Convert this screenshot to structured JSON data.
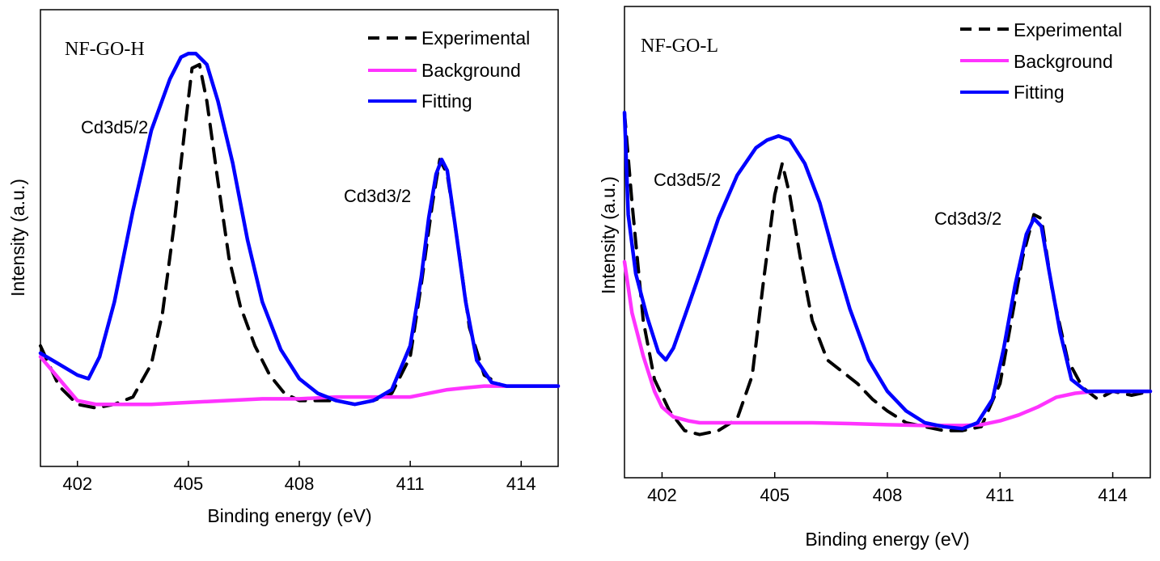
{
  "chart_data": [
    {
      "type": "line",
      "title": "",
      "sample_label": "NF-GO-H",
      "xlabel": "Binding energy (eV)",
      "ylabel": "Intensity (a.u.)",
      "xlim": [
        401,
        415
      ],
      "ylim": [
        0,
        1.25
      ],
      "xticks": [
        "402",
        "405",
        "408",
        "411",
        "414"
      ],
      "xtick_values": [
        402,
        405,
        408,
        411,
        414
      ],
      "y_ticks_shown": false,
      "grid": false,
      "legend_position": "top-right",
      "legend": [
        {
          "name": "Experimental",
          "style": "dashed",
          "color": "#000000"
        },
        {
          "name": "Background",
          "style": "solid",
          "color": "#ff33ff"
        },
        {
          "name": "Fitting",
          "style": "solid",
          "color": "#0000ff"
        }
      ],
      "annotations": [
        {
          "text": "Cd3d5/2",
          "x": 403.0,
          "y": 0.9
        },
        {
          "text": "Cd3d3/2",
          "x": 411.1,
          "y": 0.71
        }
      ],
      "series": [
        {
          "name": "Experimental",
          "color": "#000000",
          "style": "dashed",
          "x": [
            401.0,
            401.5,
            402.0,
            402.5,
            403.0,
            403.5,
            404.0,
            404.3,
            404.6,
            404.9,
            405.1,
            405.3,
            405.5,
            405.8,
            406.1,
            406.4,
            406.8,
            407.2,
            407.6,
            408.0,
            408.5,
            409.0,
            409.5,
            410.0,
            410.5,
            411.0,
            411.3,
            411.6,
            411.8,
            412.0,
            412.3,
            412.6,
            413.0,
            413.5,
            414.0,
            414.5,
            415.0
          ],
          "y": [
            0.33,
            0.22,
            0.17,
            0.16,
            0.17,
            0.19,
            0.28,
            0.42,
            0.65,
            0.92,
            1.09,
            1.1,
            1.0,
            0.78,
            0.57,
            0.44,
            0.33,
            0.25,
            0.2,
            0.18,
            0.18,
            0.18,
            0.17,
            0.18,
            0.2,
            0.3,
            0.5,
            0.72,
            0.84,
            0.8,
            0.6,
            0.38,
            0.25,
            0.22,
            0.22,
            0.22,
            0.22
          ]
        },
        {
          "name": "Background",
          "color": "#ff33ff",
          "style": "solid",
          "x": [
            401.0,
            401.5,
            402.0,
            402.5,
            403.0,
            404.0,
            405.0,
            406.0,
            407.0,
            408.0,
            409.0,
            410.0,
            411.0,
            411.5,
            412.0,
            412.5,
            413.0,
            413.5,
            414.0,
            415.0
          ],
          "y": [
            0.3,
            0.24,
            0.18,
            0.17,
            0.17,
            0.17,
            0.175,
            0.18,
            0.185,
            0.185,
            0.19,
            0.19,
            0.19,
            0.2,
            0.21,
            0.215,
            0.22,
            0.22,
            0.22,
            0.22
          ]
        },
        {
          "name": "Fitting",
          "color": "#0000ff",
          "style": "solid",
          "x": [
            401.0,
            401.5,
            402.0,
            402.3,
            402.6,
            403.0,
            403.5,
            404.0,
            404.5,
            404.8,
            405.0,
            405.2,
            405.5,
            405.8,
            406.2,
            406.6,
            407.0,
            407.5,
            408.0,
            408.5,
            409.0,
            409.5,
            410.0,
            410.5,
            411.0,
            411.3,
            411.5,
            411.7,
            411.85,
            412.0,
            412.2,
            412.5,
            412.8,
            413.2,
            413.6,
            414.0,
            414.5,
            415.0
          ],
          "y": [
            0.31,
            0.28,
            0.25,
            0.24,
            0.3,
            0.45,
            0.7,
            0.92,
            1.06,
            1.12,
            1.13,
            1.13,
            1.1,
            1.0,
            0.83,
            0.62,
            0.45,
            0.32,
            0.24,
            0.2,
            0.18,
            0.17,
            0.18,
            0.21,
            0.33,
            0.52,
            0.68,
            0.8,
            0.84,
            0.81,
            0.67,
            0.45,
            0.29,
            0.23,
            0.22,
            0.22,
            0.22,
            0.22
          ]
        }
      ]
    },
    {
      "type": "line",
      "title": "",
      "sample_label": "NF-GO-L",
      "xlabel": "Binding energy (eV)",
      "ylabel": "Intensity (a.u.)",
      "xlim": [
        401,
        415
      ],
      "ylim": [
        0,
        1.2
      ],
      "xticks": [
        "402",
        "405",
        "408",
        "411",
        "414"
      ],
      "xtick_values": [
        402,
        405,
        408,
        411,
        414
      ],
      "y_ticks_shown": false,
      "grid": false,
      "legend_position": "top-right",
      "legend": [
        {
          "name": "Experimental",
          "style": "dashed",
          "color": "#000000"
        },
        {
          "name": "Background",
          "style": "solid",
          "color": "#ff33ff"
        },
        {
          "name": "Fitting",
          "style": "solid",
          "color": "#0000ff"
        }
      ],
      "annotations": [
        {
          "text": "Cd3d5/2",
          "x": 402.8,
          "y": 0.77
        },
        {
          "text": "Cd3d3/2",
          "x": 410.3,
          "y": 0.66
        }
      ],
      "series": [
        {
          "name": "Experimental",
          "color": "#000000",
          "style": "dashed",
          "x": [
            401.0,
            401.2,
            401.5,
            401.8,
            402.2,
            402.6,
            403.0,
            403.5,
            404.0,
            404.4,
            404.7,
            405.0,
            405.2,
            405.4,
            405.7,
            406.0,
            406.4,
            406.8,
            407.2,
            407.6,
            408.0,
            408.5,
            409.0,
            409.5,
            410.0,
            410.5,
            411.0,
            411.3,
            411.6,
            411.9,
            412.1,
            412.4,
            412.8,
            413.2,
            413.6,
            414.0,
            414.5,
            415.0
          ],
          "y": [
            0.93,
            0.7,
            0.4,
            0.25,
            0.17,
            0.12,
            0.11,
            0.12,
            0.15,
            0.26,
            0.5,
            0.72,
            0.8,
            0.72,
            0.55,
            0.4,
            0.3,
            0.27,
            0.24,
            0.2,
            0.17,
            0.14,
            0.13,
            0.12,
            0.12,
            0.13,
            0.24,
            0.4,
            0.56,
            0.67,
            0.66,
            0.47,
            0.3,
            0.23,
            0.2,
            0.22,
            0.21,
            0.22
          ]
        },
        {
          "name": "Background",
          "color": "#ff33ff",
          "style": "solid",
          "x": [
            401.0,
            401.2,
            401.5,
            401.8,
            402.0,
            402.3,
            402.7,
            403.0,
            404.0,
            405.0,
            406.0,
            407.0,
            408.0,
            409.0,
            410.0,
            410.5,
            411.0,
            411.5,
            412.0,
            412.5,
            413.0,
            413.5,
            414.0,
            414.5,
            415.0
          ],
          "y": [
            0.55,
            0.42,
            0.31,
            0.22,
            0.18,
            0.155,
            0.145,
            0.14,
            0.14,
            0.14,
            0.14,
            0.138,
            0.135,
            0.133,
            0.133,
            0.135,
            0.145,
            0.16,
            0.18,
            0.205,
            0.215,
            0.22,
            0.22,
            0.22,
            0.22
          ]
        },
        {
          "name": "Fitting",
          "color": "#0000ff",
          "style": "solid",
          "x": [
            401.0,
            401.1,
            401.3,
            401.6,
            401.9,
            402.1,
            402.3,
            402.6,
            403.0,
            403.5,
            404.0,
            404.5,
            404.8,
            405.1,
            405.4,
            405.8,
            406.2,
            406.6,
            407.0,
            407.5,
            408.0,
            408.5,
            409.0,
            409.5,
            410.0,
            410.4,
            410.8,
            411.1,
            411.4,
            411.7,
            411.9,
            412.1,
            412.3,
            412.6,
            412.9,
            413.3,
            413.7,
            414.0,
            414.5,
            415.0
          ],
          "y": [
            0.93,
            0.67,
            0.52,
            0.41,
            0.32,
            0.3,
            0.33,
            0.41,
            0.52,
            0.66,
            0.77,
            0.84,
            0.86,
            0.87,
            0.86,
            0.8,
            0.7,
            0.56,
            0.43,
            0.3,
            0.22,
            0.17,
            0.14,
            0.13,
            0.125,
            0.14,
            0.2,
            0.33,
            0.49,
            0.62,
            0.66,
            0.64,
            0.53,
            0.37,
            0.25,
            0.22,
            0.22,
            0.22,
            0.22,
            0.22
          ]
        }
      ]
    }
  ]
}
